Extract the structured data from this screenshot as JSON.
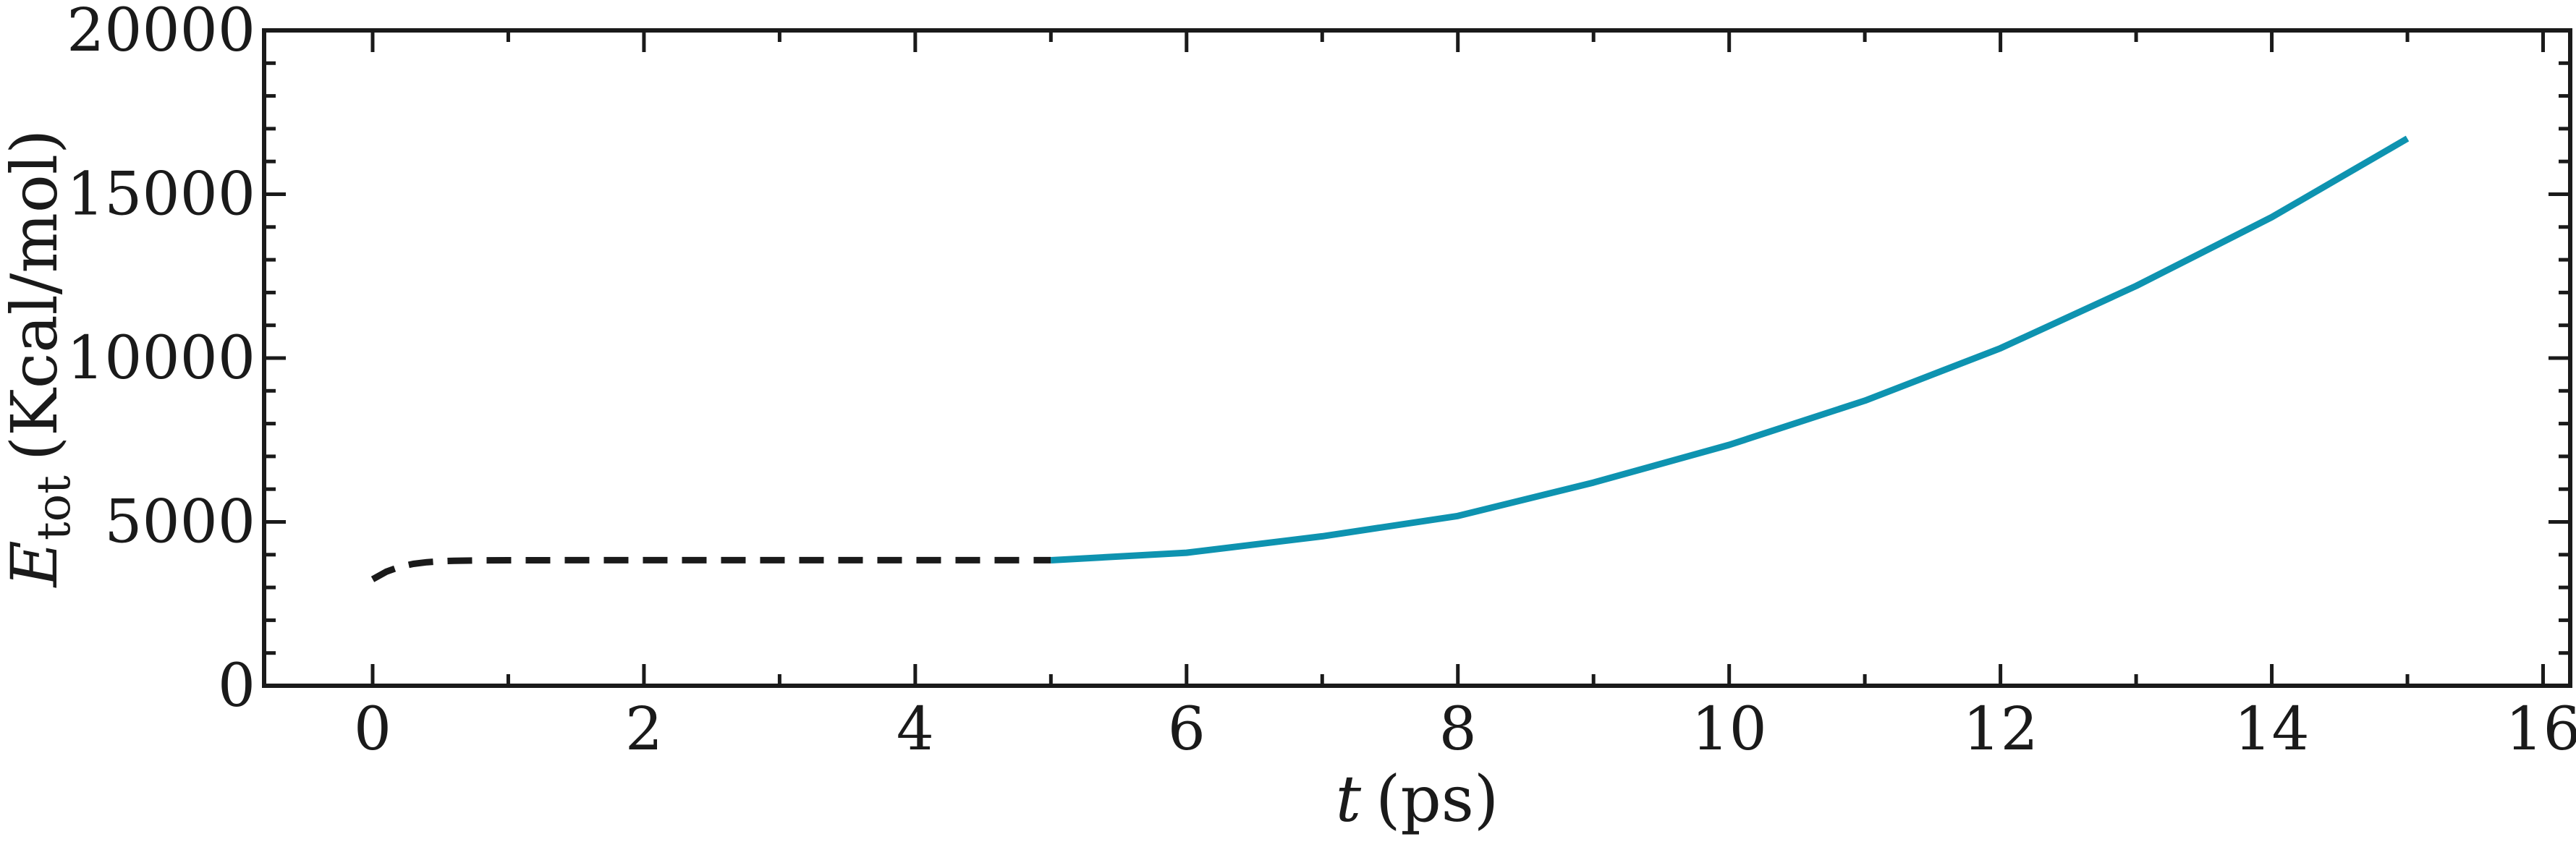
{
  "chart_data": {
    "type": "line",
    "title": "",
    "xlabel": {
      "symbol": "t",
      "unit": "(ps)"
    },
    "ylabel": {
      "symbol": "E",
      "subscript": "tot",
      "unit": "(Kcal/mol)"
    },
    "xlim": [
      -0.8,
      16.2
    ],
    "ylim": [
      0,
      20000
    ],
    "x_ticks": [
      0,
      2,
      4,
      6,
      8,
      10,
      12,
      14,
      16
    ],
    "y_ticks": [
      0,
      5000,
      10000,
      15000,
      20000
    ],
    "x_tick_labels": [
      "0",
      "2",
      "4",
      "6",
      "8",
      "10",
      "12",
      "14",
      "16"
    ],
    "y_tick_labels": [
      "0",
      "5000",
      "10000",
      "15000",
      "20000"
    ],
    "grid": false,
    "series": [
      {
        "style": "dashed",
        "color": "#1a1a1a",
        "x": [
          0,
          0.1,
          0.2,
          0.3,
          0.4,
          0.5,
          0.6,
          0.8,
          1.0,
          1.5,
          2.0,
          3.0,
          4.0,
          5.0
        ],
        "y": [
          3250,
          3480,
          3630,
          3720,
          3770,
          3800,
          3815,
          3825,
          3830,
          3832,
          3833,
          3833,
          3833,
          3833
        ]
      },
      {
        "style": "solid",
        "color": "#0e93b0",
        "x": [
          5,
          6,
          7,
          8,
          9,
          10,
          11,
          12,
          13,
          14,
          15
        ],
        "y": [
          3830,
          4060,
          4560,
          5180,
          6200,
          7350,
          8700,
          10300,
          12200,
          14300,
          16700
        ]
      }
    ]
  }
}
